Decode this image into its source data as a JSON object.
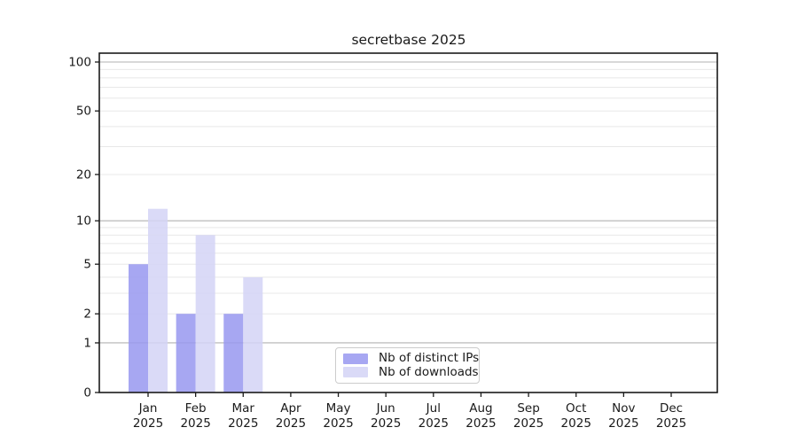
{
  "chart_data": {
    "type": "bar",
    "title": "secretbase 2025",
    "months": [
      "Jan",
      "Feb",
      "Mar",
      "Apr",
      "May",
      "Jun",
      "Jul",
      "Aug",
      "Sep",
      "Oct",
      "Nov",
      "Dec"
    ],
    "year_label": "2025",
    "y_ticks": [
      0,
      1,
      2,
      5,
      10,
      20,
      50,
      100
    ],
    "y_tick_labels": [
      "0",
      "1",
      "2",
      "5",
      "10",
      "20",
      "50",
      "100"
    ],
    "yscale": "log1p",
    "ylim": [
      0,
      114
    ],
    "grid": "horizontal, major and minor",
    "major_grid_values": [
      1,
      10,
      100
    ],
    "minor_grid_values": [
      2,
      3,
      4,
      5,
      6,
      7,
      8,
      9,
      20,
      30,
      40,
      50,
      60,
      70,
      80,
      90
    ],
    "series": [
      {
        "name": "Nb of distinct IPs",
        "color": "#9898f0",
        "values": [
          5,
          2,
          2,
          0,
          0,
          0,
          0,
          0,
          0,
          0,
          0,
          0
        ]
      },
      {
        "name": "Nb of downloads",
        "color": "#d4d4f6",
        "values": [
          12,
          8,
          4,
          0,
          0,
          0,
          0,
          0,
          0,
          0,
          0,
          0
        ]
      }
    ],
    "legend": {
      "position": "bottom-center inside axes",
      "entries": [
        "Nb of distinct IPs",
        "Nb of downloads"
      ]
    },
    "colors": {
      "background": "#ffffff",
      "major_grid": "#b2b2b2",
      "minor_grid": "#e8e8e8",
      "spine": "#1a1a1a",
      "text": "#1a1a1a"
    }
  }
}
